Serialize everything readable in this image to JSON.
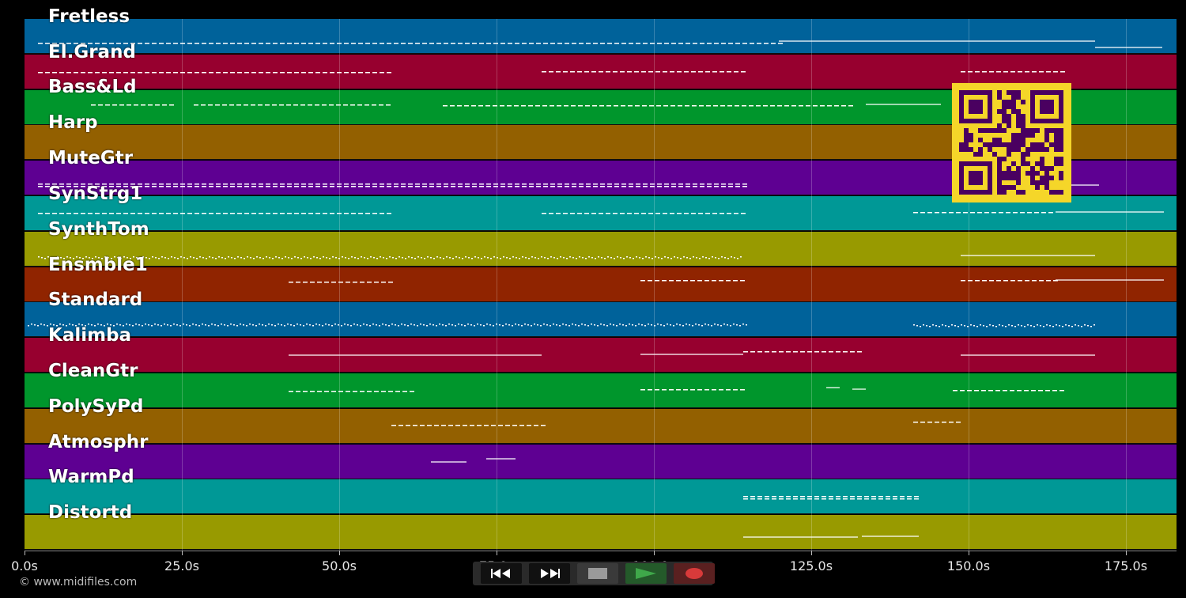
{
  "tracks": [
    {
      "name": "Fretless",
      "color": "#00629a"
    },
    {
      "name": "El.Grand",
      "color": "#97002f"
    },
    {
      "name": "Bass&Ld",
      "color": "#00962c"
    },
    {
      "name": "Harp",
      "color": "#936000"
    },
    {
      "name": "MuteGtr",
      "color": "#5e0092"
    },
    {
      "name": "SynStrg1",
      "color": "#009896"
    },
    {
      "name": "SynthTom",
      "color": "#989a00"
    },
    {
      "name": "Ensmble1",
      "color": "#902400"
    },
    {
      "name": "Standard",
      "color": "#00629a"
    },
    {
      "name": "Kalimba",
      "color": "#97002f"
    },
    {
      "name": "CleanGtr",
      "color": "#00962c"
    },
    {
      "name": "PolySyPd",
      "color": "#936000"
    },
    {
      "name": "Atmosphr",
      "color": "#5e0092"
    },
    {
      "name": "WarmPd",
      "color": "#009896"
    },
    {
      "name": "Distortd",
      "color": "#989a00"
    }
  ],
  "timeline": {
    "ticks": [
      "0.0s",
      "25.0s",
      "50.0s",
      "75.0s",
      "100.0s",
      "125.0s",
      "150.0s",
      "175.0s"
    ],
    "tick_values": [
      0,
      25,
      50,
      75,
      100,
      125,
      150,
      175
    ],
    "max_seconds": 183
  },
  "transport": {
    "rewind_icon": "rewind-icon",
    "fast_forward_icon": "fast-forward-icon",
    "stop_icon": "stop-icon",
    "play_icon": "play-icon",
    "record_icon": "record-icon",
    "play_color": "#3fa84a",
    "record_color": "#d83a3a"
  },
  "footer": {
    "copyright": "© www.midifiles.com"
  },
  "qr_color": "#f5d629",
  "qr_dark_color": "#4a0060"
}
